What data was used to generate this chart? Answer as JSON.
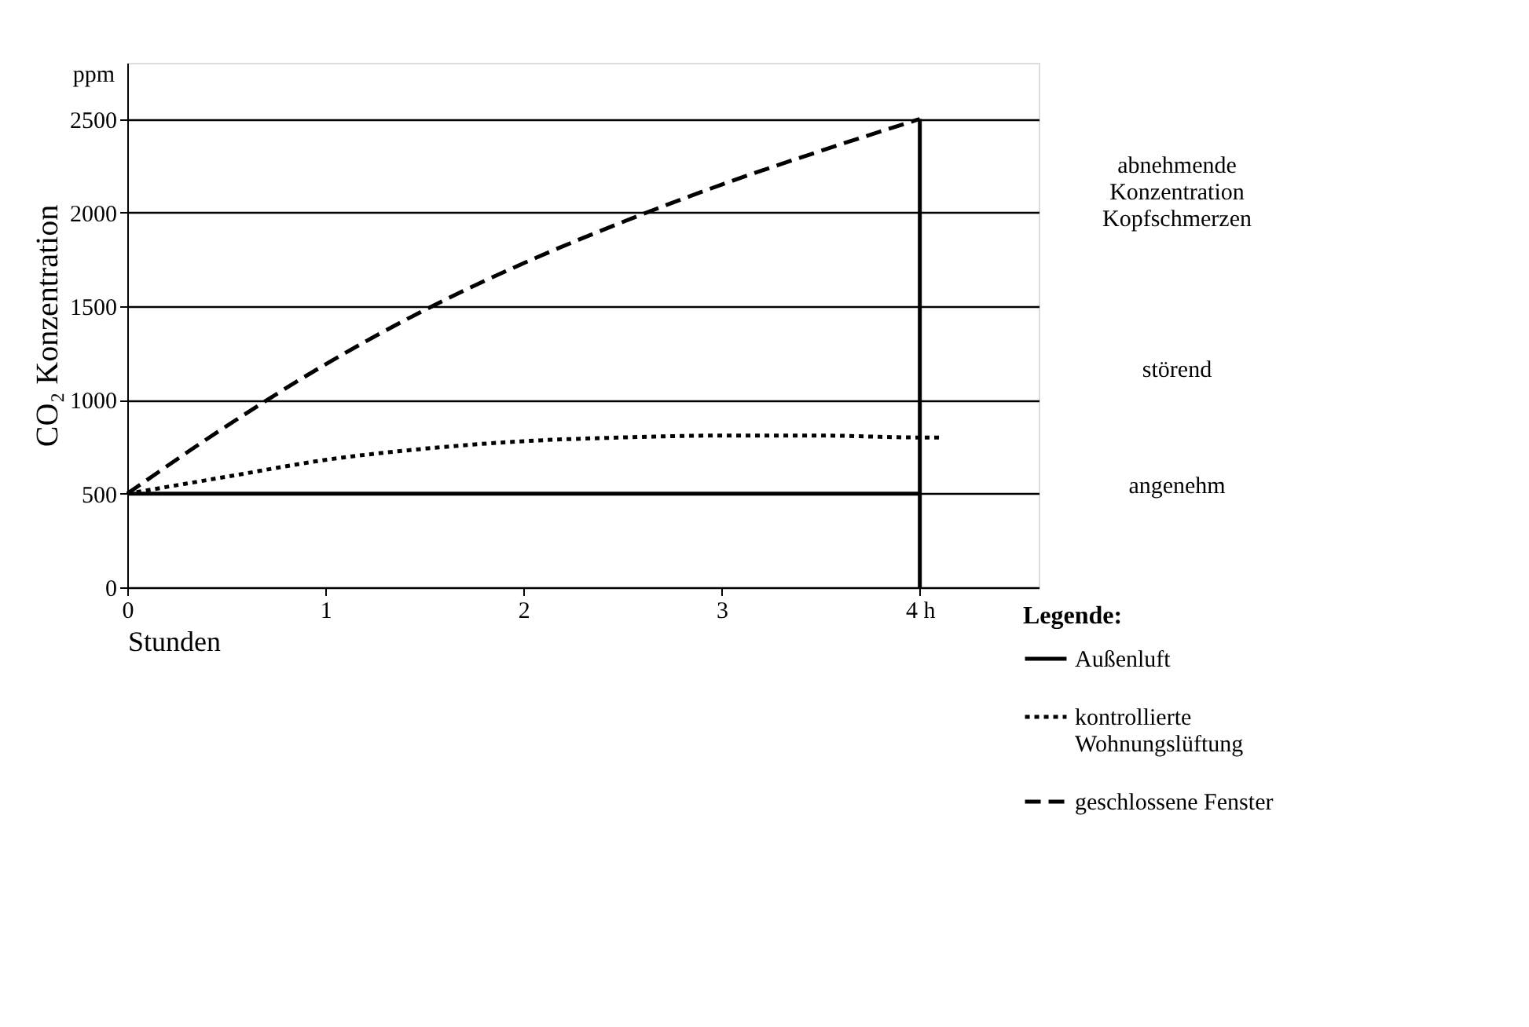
{
  "chart_data": {
    "type": "line",
    "xlabel": "Stunden",
    "ylabel": "CO₂ Konzentration",
    "legend_title": "Legende:",
    "xlim": [
      0,
      4.6
    ],
    "ylim": [
      0,
      2800
    ],
    "xticks": [
      0,
      1,
      2,
      3,
      {
        "value": 4,
        "label": "4  h"
      }
    ],
    "yticks": [
      0,
      500,
      1000,
      1500,
      2000,
      2500
    ],
    "grid": "y",
    "legend": "bottom right",
    "ref_lines": [
      {
        "axis": "x",
        "value": 4,
        "label": null
      }
    ],
    "annotations": [
      "ppm",
      "abnehmende\nKonzentration\nKopfschmerzen",
      "störend",
      "angenehm"
    ],
    "series": [
      {
        "name": "Außenluft",
        "color": "#000000",
        "line_style": "solid",
        "x": [
          0,
          4
        ],
        "values": [
          500,
          500
        ]
      },
      {
        "name": "kontrollierte\nWohnungslüftung",
        "color": "#000000",
        "line_style": "dotted",
        "x": [
          0,
          0.5,
          1,
          1.5,
          2,
          2.5,
          3,
          3.5,
          4,
          4.1
        ],
        "values": [
          500,
          590,
          680,
          740,
          780,
          800,
          810,
          810,
          800,
          800
        ]
      },
      {
        "name": "geschlossene Fenster",
        "color": "#000000",
        "line_style": "dashed",
        "x": [
          0,
          0.5,
          1,
          1.5,
          2,
          2.5,
          3,
          3.5,
          4
        ],
        "values": [
          500,
          860,
          1190,
          1480,
          1730,
          1950,
          2150,
          2330,
          2500
        ]
      }
    ]
  }
}
